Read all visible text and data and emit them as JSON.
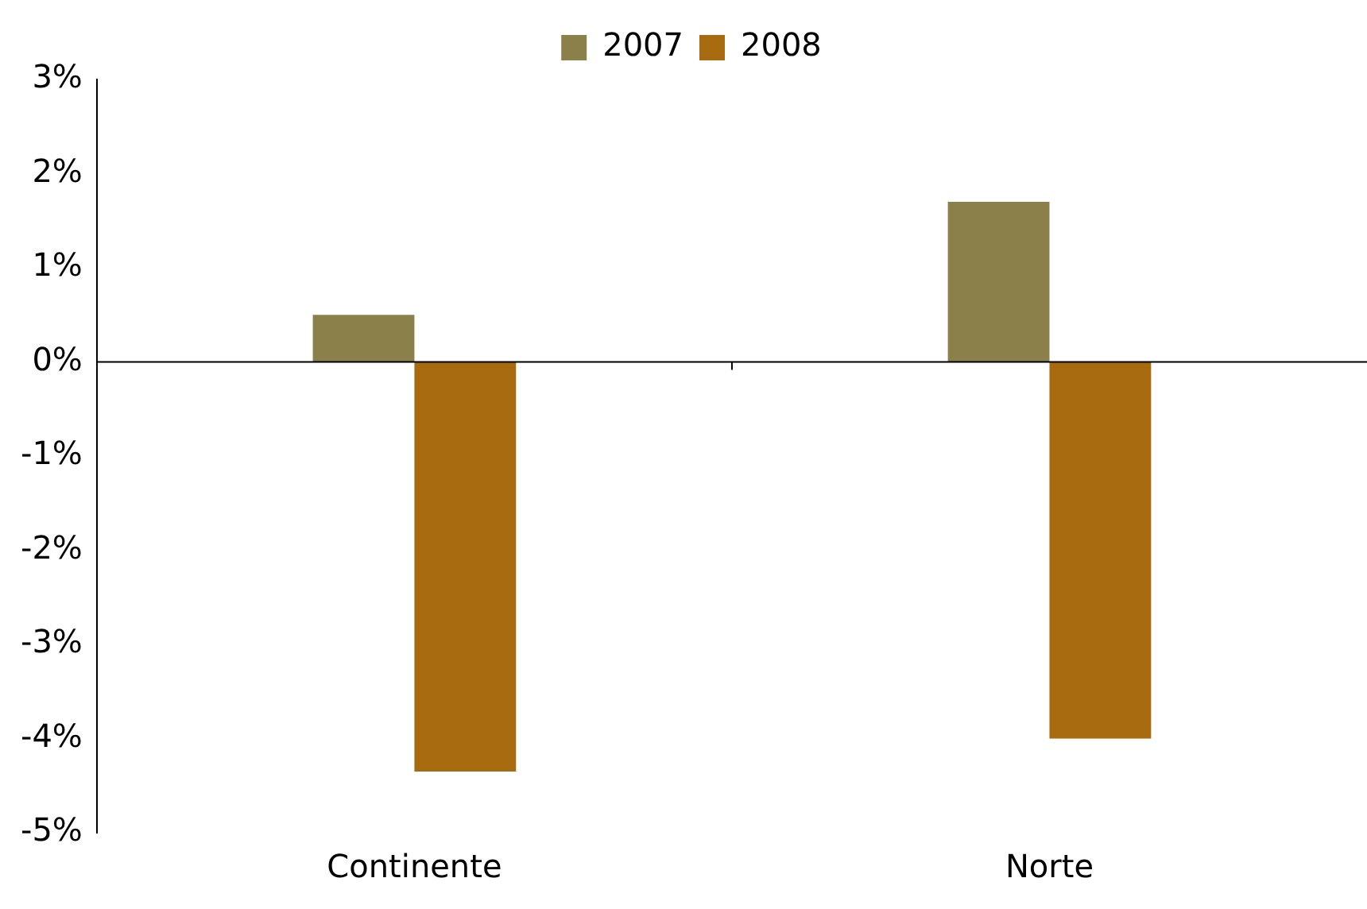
{
  "chart_data": {
    "type": "bar",
    "categories": [
      "Continente",
      "Norte"
    ],
    "series": [
      {
        "name": "2007",
        "color": "#8c804a",
        "values": [
          0.5,
          1.7
        ]
      },
      {
        "name": "2008",
        "color": "#a86a0e",
        "values": [
          -4.35,
          -4.0
        ]
      }
    ],
    "ylim": [
      -5,
      3
    ],
    "yticks": [
      {
        "value": -5,
        "label": "-5%"
      },
      {
        "value": -4,
        "label": "-4%"
      },
      {
        "value": -3,
        "label": "-3%"
      },
      {
        "value": -2,
        "label": "-2%"
      },
      {
        "value": -1,
        "label": "-1%"
      },
      {
        "value": 0,
        "label": "0%"
      },
      {
        "value": 1,
        "label": "1%"
      },
      {
        "value": 2,
        "label": "2%"
      },
      {
        "value": 3,
        "label": "3%"
      }
    ],
    "legend": "top"
  }
}
